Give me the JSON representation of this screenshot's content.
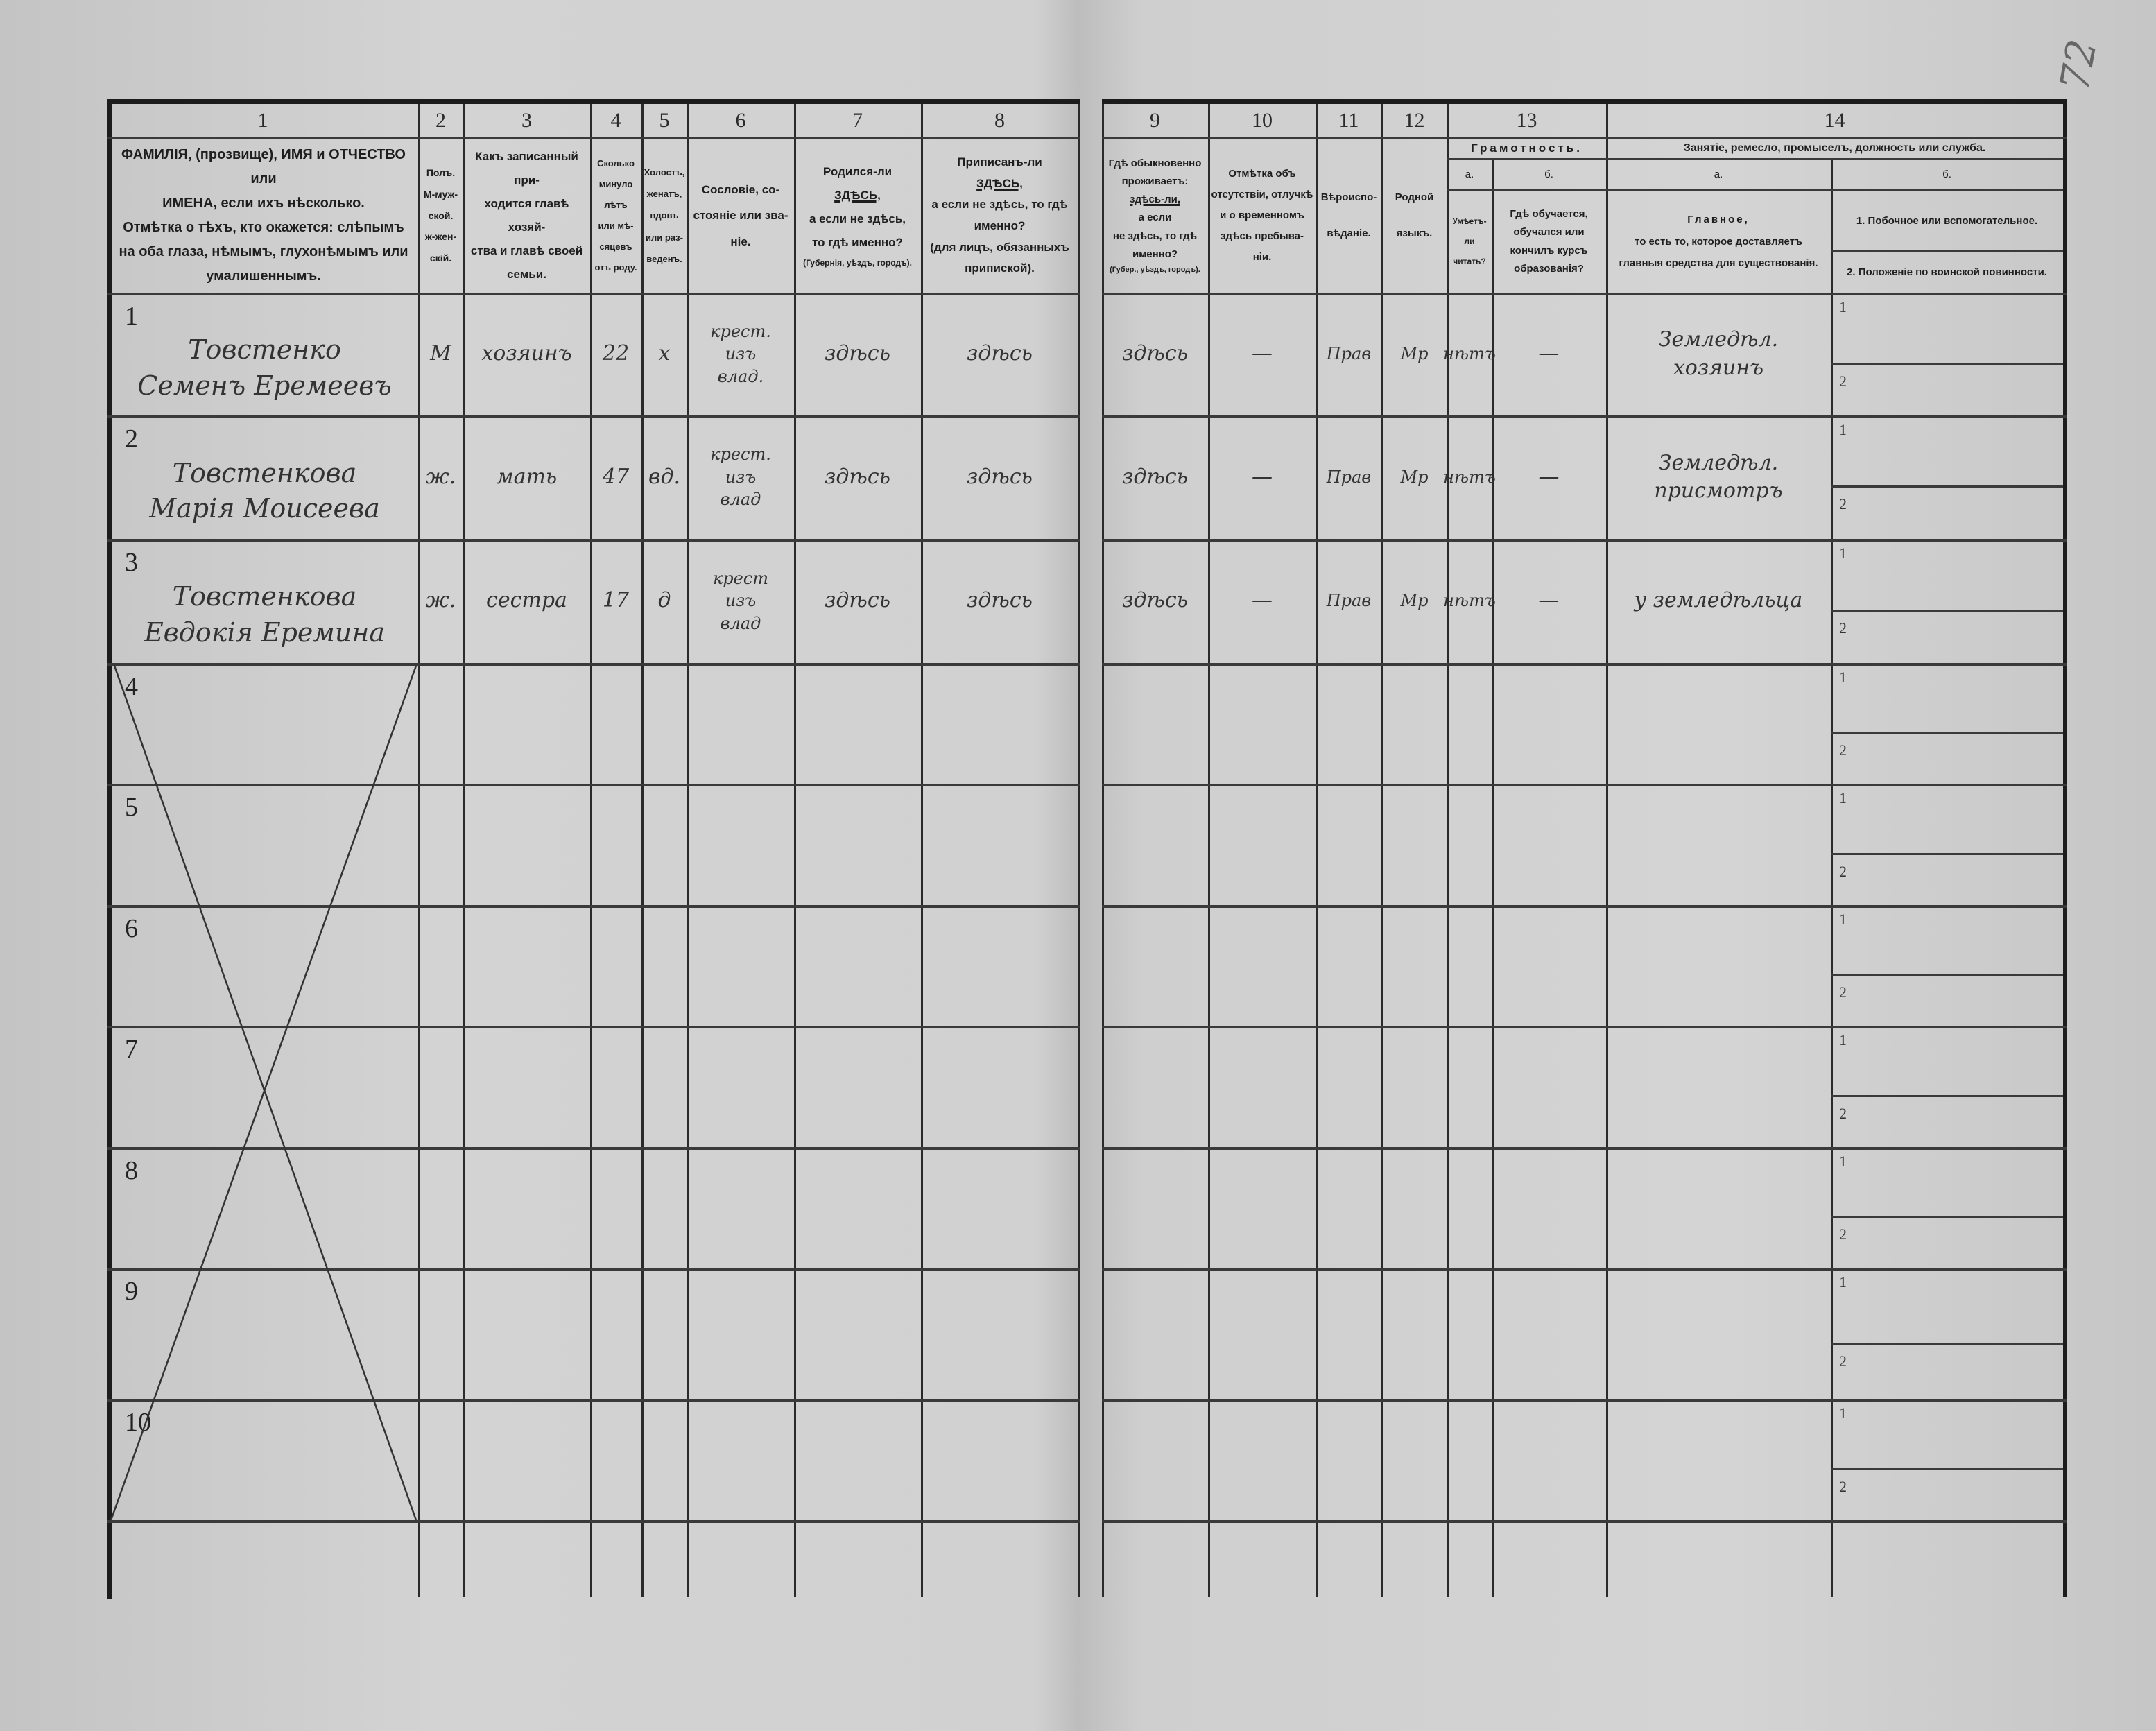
{
  "page_number": "72",
  "columns_left": {
    "numbers": [
      "1",
      "2",
      "3",
      "4",
      "5",
      "6",
      "7",
      "8"
    ],
    "c1": [
      "ФАМИЛІЯ, (прозвище), ИМЯ и ОТЧЕСТВО или",
      "ИМЕНА, если ихъ нѣсколько.",
      "Отмѣтка о тѣхъ, кто окажется: слѣпымъ",
      "на оба глаза, нѣмымъ, глухонѣмымъ или",
      "умалишеннымъ."
    ],
    "c2": [
      "Полъ.",
      "М-муж-ской.",
      "ж-жен-скій."
    ],
    "c3": [
      "Какъ записанный при-",
      "ходится главѣ хозяй-",
      "ства и главѣ своей",
      "семьи."
    ],
    "c4": [
      "Сколько",
      "минуло",
      "лѣтъ",
      "или мѣ-",
      "сяцевъ",
      "отъ роду."
    ],
    "c5": [
      "Холостъ,",
      "женатъ,",
      "вдовъ",
      "или раз-",
      "веденъ."
    ],
    "c6": [
      "Сословіе, со-",
      "стояніе или зва-",
      "ніе."
    ],
    "c7": [
      "Родился-ли",
      "ЗДѢСЬ,",
      "а если не здѣсь,",
      "то гдѣ именно?",
      "(Губернія, уѣздъ, городъ)."
    ],
    "c8": [
      "Приписанъ-ли",
      "ЗДѢСЬ,",
      "а если не здѣсь, то гдѣ",
      "именно?",
      "(для лицъ, обязанныхъ",
      "припиской)."
    ]
  },
  "columns_right": {
    "numbers": [
      "9",
      "10",
      "11",
      "12",
      "13",
      "14"
    ],
    "c9": [
      "Гдѣ обыкновенно",
      "проживаетъ:",
      "здѣсь-ли,",
      "а если",
      "не здѣсь, то гдѣ",
      "именно?",
      "(Губер., уѣздъ, городъ)."
    ],
    "c10": [
      "Отмѣтка объ",
      "отсутствіи, отлучкѣ",
      "и о временномъ",
      "здѣсь пребыва-",
      "ніи."
    ],
    "c11": [
      "Вѣроиспо-",
      "вѣданіе."
    ],
    "c12": [
      "Родной",
      "языкъ."
    ],
    "c13_title": "Грамотность.",
    "c13a_letter": "а.",
    "c13a": [
      "Умѣетъ-",
      "ли",
      "читать?"
    ],
    "c13b_letter": "б.",
    "c13b": [
      "Гдѣ обучается,",
      "обучался или",
      "кончилъ курсъ",
      "образованія?"
    ],
    "c14_title": "Занятіе, ремесло, промыселъ, должность или служба.",
    "c14a_letter": "а.",
    "c14a": [
      "Главное,",
      "то есть то, которое доставляетъ",
      "главныя средства для существованія."
    ],
    "c14b_letter": "б.",
    "c14b_1": "1.  Побочное или вспомогательное.",
    "c14b_2": "2.  Положеніе по воинской повинности."
  },
  "sub_labels": [
    "1",
    "2"
  ],
  "rows": [
    {
      "number": "1",
      "name": [
        "Товстенко",
        "Семенъ Еремеевъ"
      ],
      "sex": "М",
      "relation": "хозяинъ",
      "age": "22",
      "marital": "х",
      "estate": [
        "крест.",
        "изъ",
        "влад."
      ],
      "birthplace": "здѣсь",
      "registered": "здѣсь",
      "residence": "здѣсь",
      "absence": "—",
      "religion": "Прав",
      "language": "Мр",
      "literate": "нѣтъ",
      "education": "—",
      "occupation": [
        "Земледѣл.",
        "хозяинъ"
      ],
      "occupation_secondary": "",
      "military": ""
    },
    {
      "number": "2",
      "name": [
        "Товстенкова",
        "Марія Моисеева"
      ],
      "sex": "ж.",
      "relation": "мать",
      "age": "47",
      "marital": "вд.",
      "estate": [
        "крест.",
        "изъ",
        "влад"
      ],
      "birthplace": "здѣсь",
      "registered": "здѣсь",
      "residence": "здѣсь",
      "absence": "—",
      "religion": "Прав",
      "language": "Мр",
      "literate": "нѣтъ",
      "education": "—",
      "occupation": [
        "Земледѣл.",
        "присмотръ"
      ],
      "occupation_secondary": "",
      "military": ""
    },
    {
      "number": "3",
      "name": [
        "Товстенкова",
        "Евдокія Еремина"
      ],
      "sex": "ж.",
      "relation": "сестра",
      "age": "17",
      "marital": "д",
      "estate": [
        "крест",
        "изъ",
        "влад"
      ],
      "birthplace": "здѣсь",
      "registered": "здѣсь",
      "residence": "здѣсь",
      "absence": "—",
      "religion": "Прав",
      "language": "Мр",
      "literate": "нѣтъ",
      "education": "—",
      "occupation": [
        "у земледѣльца"
      ],
      "occupation_secondary": "",
      "military": ""
    },
    {
      "number": "4"
    },
    {
      "number": "5"
    },
    {
      "number": "6"
    },
    {
      "number": "7"
    },
    {
      "number": "8"
    },
    {
      "number": "9"
    },
    {
      "number": "10"
    }
  ]
}
